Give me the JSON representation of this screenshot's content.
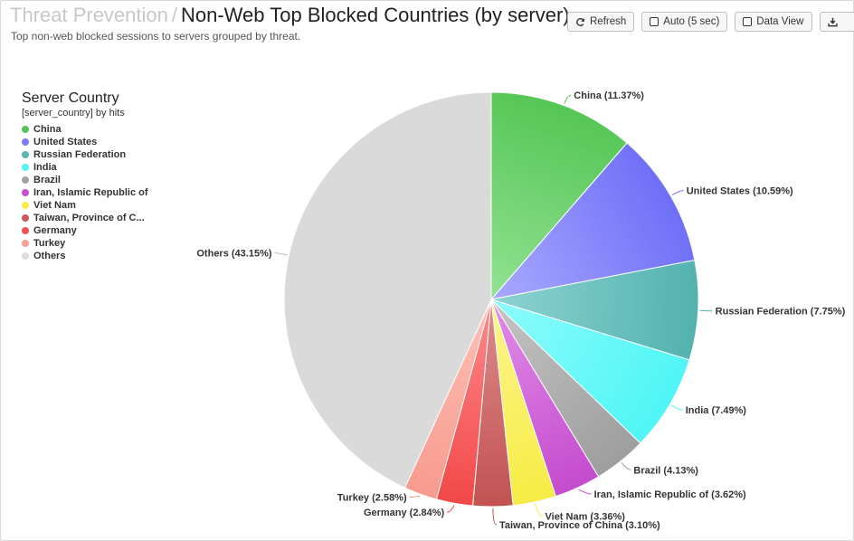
{
  "header": {
    "breadcrumb": "Threat Prevention",
    "separator": "/",
    "title": "Non-Web Top Blocked Countries (by server)",
    "subtitle": "Top non-web blocked sessions to servers grouped by threat."
  },
  "toolbar": {
    "refresh_label": "Refresh",
    "auto_label": "Auto (5 sec)",
    "auto_checked": false,
    "dataview_label": "Data View",
    "dataview_checked": false,
    "export_icon": "download-icon"
  },
  "legend": {
    "title": "Server Country",
    "subtitle": "[server_country] by hits",
    "items": [
      {
        "label": "China",
        "color": "#55c655"
      },
      {
        "label": "United States",
        "color": "#7b7bfa"
      },
      {
        "label": "Russian Federation",
        "color": "#5bb5b2"
      },
      {
        "label": "India",
        "color": "#55f3f3"
      },
      {
        "label": "Brazil",
        "color": "#a3a3a3"
      },
      {
        "label": "Iran, Islamic Republic of",
        "color": "#c94fd2"
      },
      {
        "label": "Viet Nam",
        "color": "#f6ed4d"
      },
      {
        "label": "Taiwan, Province of C...",
        "color": "#c85a5a"
      },
      {
        "label": "Germany",
        "color": "#f25252"
      },
      {
        "label": "Turkey",
        "color": "#f7a195"
      },
      {
        "label": "Others",
        "color": "#dcdcdc"
      }
    ]
  },
  "chart_data": {
    "type": "pie",
    "series": [
      {
        "label": "China",
        "value": 11.37,
        "display": "China (11.37%)",
        "color": "#55c655",
        "light": "#93e293"
      },
      {
        "label": "United States",
        "value": 10.59,
        "display": "United States (10.59%)",
        "color": "#6f6ff7",
        "light": "#a9a9ff"
      },
      {
        "label": "Russian Federation",
        "value": 7.75,
        "display": "Russian Federation (7.75%)",
        "color": "#52b2af",
        "light": "#8ed3d2"
      },
      {
        "label": "India",
        "value": 7.49,
        "display": "India (7.49%)",
        "color": "#4ff5f5",
        "light": "#8efcfc"
      },
      {
        "label": "Brazil",
        "value": 4.13,
        "display": "Brazil (4.13%)",
        "color": "#9e9e9e",
        "light": "#c4c4c4"
      },
      {
        "label": "Iran, Islamic Republic of",
        "value": 3.62,
        "display": "Iran, Islamic Republic of (3.62%)",
        "color": "#c44bce",
        "light": "#e28ee8"
      },
      {
        "label": "Viet Nam",
        "value": 3.36,
        "display": "Viet Nam (3.36%)",
        "color": "#f6ec44",
        "light": "#fcf58e"
      },
      {
        "label": "Taiwan, Province of China",
        "value": 3.1,
        "display": "Taiwan, Province of China (3.10%)",
        "color": "#c25252",
        "light": "#dd8c8c"
      },
      {
        "label": "Germany",
        "value": 2.84,
        "display": "Germany (2.84%)",
        "color": "#f24848",
        "light": "#ff8a8a"
      },
      {
        "label": "Turkey",
        "value": 2.58,
        "display": "Turkey (2.58%)",
        "color": "#f79b8e",
        "light": "#ffc0b6"
      },
      {
        "label": "Others",
        "value": 43.15,
        "display": "Others (43.15%)",
        "color": "#dadada",
        "light": "#dadada"
      }
    ]
  }
}
